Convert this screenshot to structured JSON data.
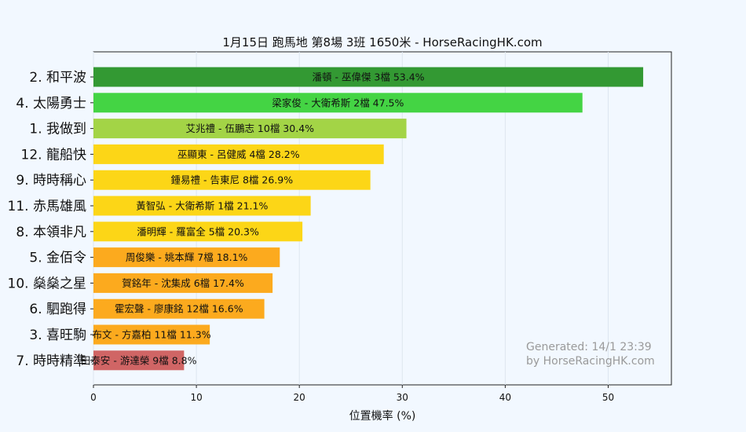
{
  "chart_data": {
    "type": "bar",
    "orientation": "horizontal",
    "title": "1月15日  跑馬地  第8場  3班  1650米 - HorseRacingHK.com",
    "xlabel": "位置機率 (%)",
    "ylabel": "",
    "xlim": [
      0,
      56
    ],
    "xticks": [
      0,
      10,
      20,
      30,
      40,
      50
    ],
    "grid": true,
    "categories": [
      "2. 和平波",
      "4. 太陽勇士",
      "1. 我做到",
      "12. 龍船快",
      "9. 時時稱心",
      "11. 赤馬雄風",
      "8. 本領非凡",
      "5. 金佰令",
      "10. 燊燊之星",
      "6. 駟跑得",
      "3. 喜旺駒",
      "7. 時時精準"
    ],
    "values": [
      53.4,
      47.5,
      30.4,
      28.2,
      26.9,
      21.1,
      20.3,
      18.1,
      17.4,
      16.6,
      11.3,
      8.8
    ],
    "bar_labels": [
      "潘頓 - 巫偉傑 3檔  53.4%",
      "梁家俊 - 大衛希斯 2檔  47.5%",
      "艾兆禮 - 伍鵬志 10檔  30.4%",
      "巫顯東 - 呂健威 4檔  28.2%",
      "鍾易禮 - 告東尼 8檔  26.9%",
      "黃智弘 - 大衛希斯 1檔  21.1%",
      "潘明輝 - 羅富全 5檔  20.3%",
      "周俊樂 - 姚本輝 7檔  18.1%",
      "賀銘年 - 沈集成 6檔  17.4%",
      "霍宏聲 - 廖康銘 12檔  16.6%",
      "布文 - 方嘉柏 11檔  11.3%",
      "田泰安 - 游達榮 9檔  8.8%"
    ],
    "colors": [
      "#339933",
      "#44d444",
      "#a3d446",
      "#fcd617",
      "#fcd617",
      "#fcd617",
      "#fcd617",
      "#fcaa1e",
      "#fcaa1e",
      "#fcaa1e",
      "#fcaa1e",
      "#d06565"
    ],
    "annotation": [
      "Generated: 14/1 23:39",
      "by HorseRacingHK.com"
    ]
  }
}
